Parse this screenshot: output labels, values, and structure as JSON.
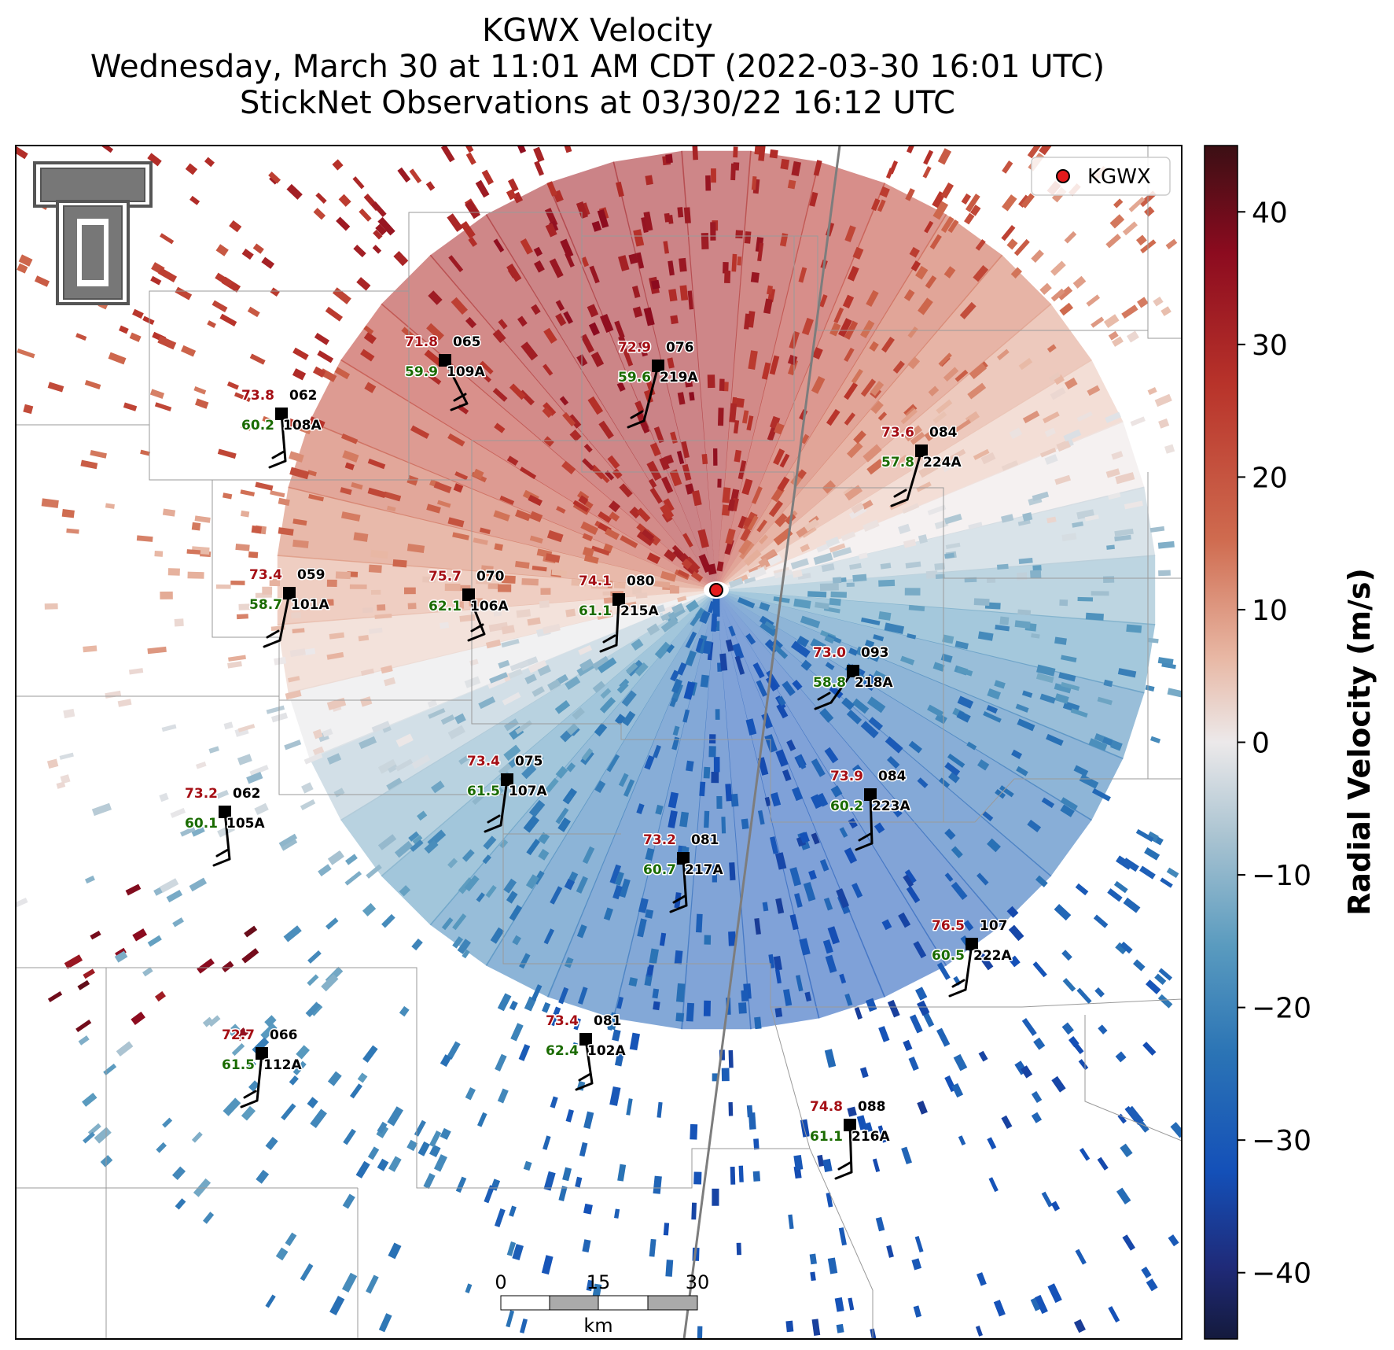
{
  "title": {
    "line1": "KGWX Velocity",
    "line2": "Wednesday, March 30 at 11:01 AM CDT (2022-03-30 16:01 UTC)",
    "line3": "StickNet Observations at 03/30/22 16:12 UTC"
  },
  "legend": {
    "label": "KGWX",
    "marker_color": "#e41a1c"
  },
  "colorbar": {
    "label": "Radial Velocity (m/s)",
    "range": [
      -45,
      45
    ],
    "ticks": [
      "40",
      "30",
      "20",
      "10",
      "0",
      "−10",
      "−20",
      "−30",
      "−40"
    ],
    "tick_values": [
      40,
      30,
      20,
      10,
      0,
      -10,
      -20,
      -30,
      -40
    ],
    "colors": [
      "#3b0f14",
      "#8c0b1f",
      "#b8332a",
      "#cf6b4f",
      "#e8b8a5",
      "#ece9ea",
      "#a9c3d1",
      "#5a9bbf",
      "#2b74b5",
      "#1450b8",
      "#1f2a78",
      "#141a3c"
    ]
  },
  "scale_bar": {
    "ticks": [
      "0",
      "15",
      "30"
    ],
    "unit": "km"
  },
  "stations": [
    {
      "temp": "71.8",
      "dew": "59.9",
      "dir": "065",
      "id": "109A"
    },
    {
      "temp": "72.9",
      "dew": "59.6",
      "dir": "076",
      "id": "219A"
    },
    {
      "temp": "73.8",
      "dew": "60.2",
      "dir": "062",
      "id": "108A"
    },
    {
      "temp": "73.6",
      "dew": "57.8",
      "dir": "084",
      "id": "224A"
    },
    {
      "temp": "73.4",
      "dew": "58.7",
      "dir": "059",
      "id": "101A"
    },
    {
      "temp": "75.7",
      "dew": "62.1",
      "dir": "070",
      "id": "106A"
    },
    {
      "temp": "74.1",
      "dew": "61.1",
      "dir": "080",
      "id": "215A"
    },
    {
      "temp": "73.0",
      "dew": "58.8",
      "dir": "093",
      "id": "218A"
    },
    {
      "temp": "73.4",
      "dew": "61.5",
      "dir": "075",
      "id": "107A"
    },
    {
      "temp": "73.2",
      "dew": "60.1",
      "dir": "062",
      "id": "105A"
    },
    {
      "temp": "73.9",
      "dew": "60.2",
      "dir": "084",
      "id": "223A"
    },
    {
      "temp": "73.2",
      "dew": "60.7",
      "dir": "081",
      "id": "217A"
    },
    {
      "temp": "76.5",
      "dew": "60.5",
      "dir": "107",
      "id": "222A"
    },
    {
      "temp": "73.4",
      "dew": "62.4",
      "dir": "081",
      "id": "102A"
    },
    {
      "temp": "72.7",
      "dew": "61.5",
      "dir": "066",
      "id": "112A"
    },
    {
      "temp": "74.8",
      "dew": "61.1",
      "dir": "088",
      "id": "216A"
    }
  ]
}
